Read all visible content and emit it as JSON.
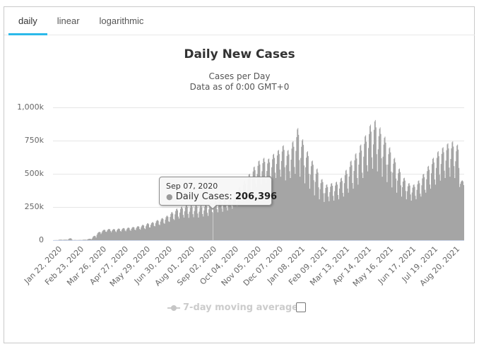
{
  "tabs": [
    {
      "label": "daily",
      "active": true
    },
    {
      "label": "linear",
      "active": false
    },
    {
      "label": "logarithmic",
      "active": false
    }
  ],
  "accent_color": "#2bb9ea",
  "chart_data": {
    "type": "column-area",
    "title": "Daily New Cases",
    "subtitle1": "Cases per Day",
    "subtitle2": "Data as of 0:00 GMT+0",
    "series_name": "Daily Cases",
    "series_color": "#a5a5a5",
    "grid_color": "#e6e6e6",
    "axis_line_color": "#ccd6eb",
    "ylim_k": [
      0,
      1000
    ],
    "y_ticks_k": [
      0,
      250,
      500,
      750,
      1000
    ],
    "y_tick_labels": [
      "0",
      "250k",
      "500k",
      "750k",
      "1,000k"
    ],
    "x_tick_labels": [
      "Jan 22, 2020",
      "Feb 23, 2020",
      "Mar 26, 2020",
      "Apr 27, 2020",
      "May 29, 2020",
      "Jun 30, 2020",
      "Aug 01, 2020",
      "Sep 02, 2020",
      "Oct 04, 2020",
      "Nov 05, 2020",
      "Dec 07, 2020",
      "Jan 08, 2021",
      "Feb 09, 2021",
      "Mar 13, 2021",
      "Apr 14, 2021",
      "May 16, 2021",
      "Jun 17, 2021",
      "Jul 19, 2021",
      "Aug 20, 2021"
    ],
    "x_tick_interval_days": 32,
    "weekly_envelope_columns": [
      "week_start",
      "low_thousands",
      "high_thousands"
    ],
    "weekly_envelope": [
      [
        "Jan 20, 2020",
        0.2,
        0.8
      ],
      [
        "Jan 27, 2020",
        1.5,
        4
      ],
      [
        "Feb 03, 2020",
        2.5,
        4
      ],
      [
        "Feb 10, 2020",
        2,
        15
      ],
      [
        "Feb 17, 2020",
        0.5,
        2
      ],
      [
        "Feb 24, 2020",
        1,
        2.2
      ],
      [
        "Mar 02, 2020",
        2,
        4.5
      ],
      [
        "Mar 09, 2020",
        4.5,
        11
      ],
      [
        "Mar 16, 2020",
        13,
        33
      ],
      [
        "Mar 23, 2020",
        40,
        63
      ],
      [
        "Mar 30, 2020",
        57,
        79
      ],
      [
        "Apr 06, 2020",
        62,
        85
      ],
      [
        "Apr 13, 2020",
        60,
        84
      ],
      [
        "Apr 20, 2020",
        61,
        88
      ],
      [
        "Apr 27, 2020",
        65,
        92
      ],
      [
        "May 04, 2020",
        67,
        95
      ],
      [
        "May 11, 2020",
        71,
        100
      ],
      [
        "May 18, 2020",
        76,
        106
      ],
      [
        "May 25, 2020",
        79,
        116
      ],
      [
        "Jun 01, 2020",
        84,
        128
      ],
      [
        "Jun 08, 2020",
        96,
        136
      ],
      [
        "Jun 15, 2020",
        104,
        152
      ],
      [
        "Jun 22, 2020",
        114,
        167
      ],
      [
        "Jun 29, 2020",
        124,
        185
      ],
      [
        "Jul 06, 2020",
        138,
        212
      ],
      [
        "Jul 13, 2020",
        152,
        237
      ],
      [
        "Jul 20, 2020",
        163,
        253
      ],
      [
        "Jul 27, 2020",
        170,
        265
      ],
      [
        "Aug 03, 2020",
        168,
        262
      ],
      [
        "Aug 10, 2020",
        173,
        266
      ],
      [
        "Aug 17, 2020",
        170,
        260
      ],
      [
        "Aug 24, 2020",
        178,
        270
      ],
      [
        "Aug 31, 2020",
        183,
        282
      ],
      [
        "Sep 07, 2020",
        206,
        298
      ],
      [
        "Sep 14, 2020",
        210,
        308
      ],
      [
        "Sep 21, 2020",
        214,
        315
      ],
      [
        "Sep 28, 2020",
        224,
        330
      ],
      [
        "Oct 05, 2020",
        238,
        355
      ],
      [
        "Oct 12, 2020",
        258,
        400
      ],
      [
        "Oct 19, 2020",
        288,
        450
      ],
      [
        "Oct 26, 2020",
        328,
        500
      ],
      [
        "Nov 02, 2020",
        368,
        555
      ],
      [
        "Nov 09, 2020",
        398,
        600
      ],
      [
        "Nov 16, 2020",
        418,
        620
      ],
      [
        "Nov 23, 2020",
        428,
        615
      ],
      [
        "Nov 30, 2020",
        448,
        650
      ],
      [
        "Dec 07, 2020",
        468,
        680
      ],
      [
        "Dec 14, 2020",
        478,
        715
      ],
      [
        "Dec 21, 2020",
        450,
        680
      ],
      [
        "Dec 28, 2020",
        468,
        745
      ],
      [
        "Jan 04, 2021",
        500,
        845
      ],
      [
        "Jan 11, 2021",
        478,
        760
      ],
      [
        "Jan 18, 2021",
        428,
        670
      ],
      [
        "Jan 25, 2021",
        388,
        600
      ],
      [
        "Feb 01, 2021",
        338,
        540
      ],
      [
        "Feb 08, 2021",
        308,
        460
      ],
      [
        "Feb 15, 2021",
        288,
        420
      ],
      [
        "Feb 22, 2021",
        293,
        430
      ],
      [
        "Mar 01, 2021",
        298,
        440
      ],
      [
        "Mar 08, 2021",
        308,
        470
      ],
      [
        "Mar 15, 2021",
        328,
        530
      ],
      [
        "Mar 22, 2021",
        358,
        600
      ],
      [
        "Mar 29, 2021",
        388,
        655
      ],
      [
        "Apr 05, 2021",
        418,
        720
      ],
      [
        "Apr 12, 2021",
        468,
        790
      ],
      [
        "Apr 19, 2021",
        518,
        870
      ],
      [
        "Apr 26, 2021",
        538,
        905
      ],
      [
        "May 03, 2021",
        518,
        850
      ],
      [
        "May 10, 2021",
        478,
        780
      ],
      [
        "May 17, 2021",
        438,
        700
      ],
      [
        "May 24, 2021",
        398,
        620
      ],
      [
        "May 31, 2021",
        358,
        540
      ],
      [
        "Jun 07, 2021",
        328,
        470
      ],
      [
        "Jun 14, 2021",
        308,
        430
      ],
      [
        "Jun 21, 2021",
        298,
        420
      ],
      [
        "Jun 28, 2021",
        308,
        450
      ],
      [
        "Jul 05, 2021",
        328,
        500
      ],
      [
        "Jul 12, 2021",
        358,
        560
      ],
      [
        "Jul 19, 2021",
        388,
        620
      ],
      [
        "Jul 26, 2021",
        418,
        670
      ],
      [
        "Aug 02, 2021",
        448,
        700
      ],
      [
        "Aug 09, 2021",
        468,
        730
      ],
      [
        "Aug 16, 2021",
        478,
        745
      ],
      [
        "Aug 23, 2021",
        468,
        720
      ],
      [
        "Aug 30, 2021",
        400,
        450
      ]
    ],
    "tooltip": {
      "date": "Sep 07, 2020",
      "series": "Daily Cases:",
      "value": "206,396",
      "anchor_week": "Sep 07, 2020"
    },
    "legend": {
      "label": "7-day moving average",
      "checkbox_checked": false,
      "disabled_color": "#cccccc"
    }
  }
}
